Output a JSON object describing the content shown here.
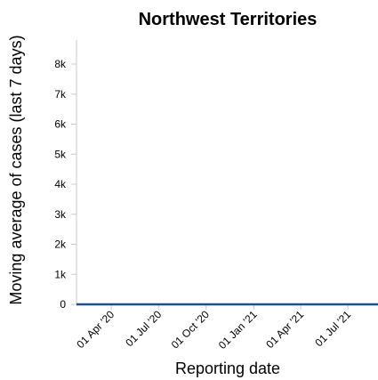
{
  "chart_data": {
    "type": "line",
    "title": "Northwest Territories",
    "xlabel": "Reporting date",
    "ylabel": "Moving average of cases (last 7 days)",
    "ylim": [
      0,
      8800
    ],
    "xlim": [
      "2020-01-25",
      "2021-08-28"
    ],
    "y_ticks": [
      0,
      1000,
      2000,
      3000,
      4000,
      5000,
      6000,
      7000,
      8000
    ],
    "y_tick_labels": [
      "0",
      "1k",
      "2k",
      "3k",
      "4k",
      "5k",
      "6k",
      "7k",
      "8k"
    ],
    "x_ticks": [
      "2020-04-01",
      "2020-07-01",
      "2020-10-01",
      "2021-01-01",
      "2021-04-01",
      "2021-07-01"
    ],
    "x_tick_labels": [
      "01 Apr '20",
      "01 Jul '20",
      "01 Oct '20",
      "01 Jan '21",
      "01 Apr '21",
      "01 Jul '21"
    ],
    "grid": false,
    "color": "#1f4e8c",
    "series": [
      {
        "x": [
          "2020-01-25",
          "2020-04-01",
          "2020-07-01",
          "2020-10-01",
          "2021-01-01",
          "2021-04-01",
          "2021-07-01",
          "2021-08-28"
        ],
        "values": [
          0,
          0,
          0,
          0,
          0,
          0,
          0,
          0
        ]
      }
    ]
  }
}
